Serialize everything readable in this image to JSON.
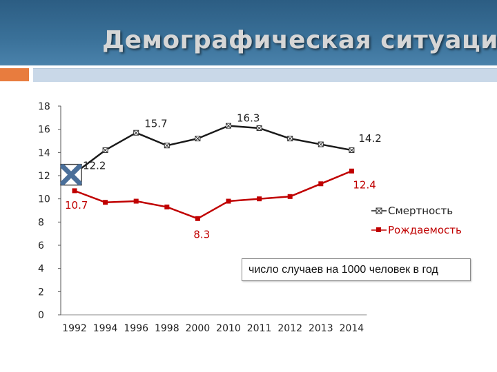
{
  "header": {
    "title": "Демографическая ситуация"
  },
  "note": "число случаев на 1000 человек в год",
  "colors": {
    "mortality": "#1a1a1a",
    "birth": "#c00000",
    "header": "#3a7199",
    "accent": "#e87c3e"
  },
  "chart_data": {
    "type": "line",
    "title": "",
    "xlabel": "",
    "ylabel": "",
    "categories": [
      "1992",
      "1994",
      "1996",
      "1998",
      "2000",
      "2010",
      "2011",
      "2012",
      "2013",
      "2014"
    ],
    "ylim": [
      0,
      18
    ],
    "yticks": [
      "0",
      "2",
      "4",
      "6",
      "8",
      "10",
      "12",
      "14",
      "16",
      "18"
    ],
    "grid": false,
    "legend": "right",
    "series": [
      {
        "name": "Смертность",
        "color": "#1a1a1a",
        "marker": "x-square",
        "values": [
          12.2,
          14.2,
          15.7,
          14.6,
          15.2,
          16.3,
          16.1,
          15.2,
          14.7,
          14.2
        ]
      },
      {
        "name": "Рождаемость",
        "color": "#c00000",
        "marker": "square",
        "values": [
          10.7,
          9.7,
          9.8,
          9.3,
          8.3,
          9.8,
          10.0,
          10.2,
          11.3,
          12.4
        ]
      }
    ],
    "data_labels": [
      {
        "series": 0,
        "index": 0,
        "text": "12.2"
      },
      {
        "series": 0,
        "index": 2,
        "text": "15.7"
      },
      {
        "series": 0,
        "index": 5,
        "text": "16.3"
      },
      {
        "series": 0,
        "index": 9,
        "text": "14.2"
      },
      {
        "series": 1,
        "index": 0,
        "text": "10.7"
      },
      {
        "series": 1,
        "index": 4,
        "text": "8.3"
      },
      {
        "series": 1,
        "index": 9,
        "text": "12.4"
      }
    ]
  }
}
